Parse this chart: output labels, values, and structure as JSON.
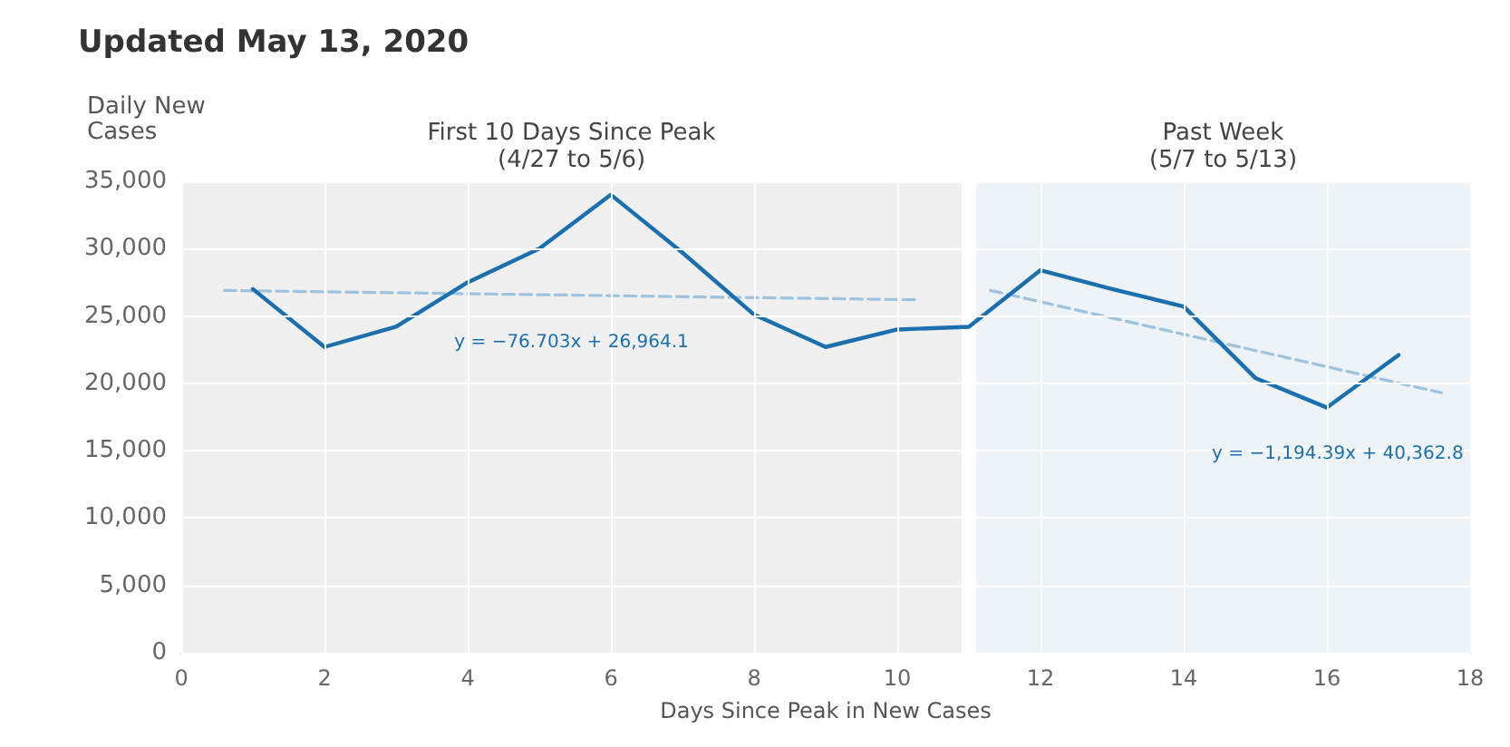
{
  "chart_data": {
    "type": "line",
    "title": "Updated May 13, 2020",
    "xlabel": "Days Since Peak in New Cases",
    "ylabel": "Daily New\nCases",
    "x": [
      1,
      2,
      3,
      4,
      5,
      6,
      7,
      8,
      9,
      10,
      11,
      12,
      13,
      14,
      15,
      16,
      17
    ],
    "series": [
      {
        "color": "#1a6fae",
        "values": [
          27000,
          22700,
          24200,
          27500,
          30000,
          34000,
          29700,
          25100,
          22700,
          24000,
          24200,
          28400,
          27000,
          25700,
          20400,
          18200,
          22100
        ]
      },
      {
        "color": "#9ec3de",
        "line_style": "dashed",
        "x": [
          0.6,
          10.3
        ],
        "values": [
          26900,
          26200
        ]
      },
      {
        "color": "#9ec3de",
        "line_style": "dashed",
        "x": [
          11.3,
          17.6
        ],
        "values": [
          26900,
          19300
        ]
      }
    ],
    "annotations": [
      "y = −76.703x + 26,964.1",
      "y = −1,194.39x + 40,362.8"
    ],
    "bands": [
      {
        "axis": "x",
        "from": 0,
        "to": 10.9,
        "label": "First 10 Days Since Peak\n(4/27 to 5/6)",
        "color": "#f0f0f0"
      },
      {
        "axis": "x",
        "from": 11.1,
        "to": 18,
        "label": "Past Week\n(5/7 to 5/13)",
        "color": "#eef3f7"
      }
    ],
    "xlim": [
      0,
      18
    ],
    "xticks": [
      0,
      2,
      4,
      6,
      8,
      10,
      12,
      14,
      16,
      18
    ],
    "ylim": [
      0,
      35000
    ],
    "yticks": [
      0,
      {
        "value": 5000,
        "label": "5,000"
      },
      {
        "value": 10000,
        "label": "10,000"
      },
      {
        "value": 15000,
        "label": "15,000"
      },
      {
        "value": 20000,
        "label": "20,000"
      },
      {
        "value": 25000,
        "label": "25,000"
      },
      {
        "value": 30000,
        "label": "30,000"
      },
      {
        "value": 35000,
        "label": "35,000"
      }
    ],
    "grid": true,
    "marker": "none",
    "line_style": "solid"
  }
}
